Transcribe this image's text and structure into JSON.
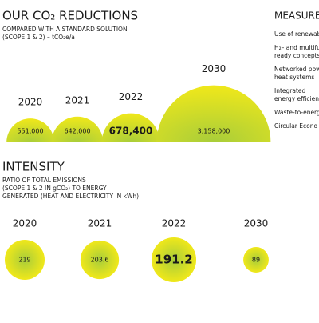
{
  "chart_data": [
    {
      "type": "semicircle-bubble",
      "title": "OUR CO₂ REDUCTIONS",
      "subtitle": [
        "COMPARED WITH A STANDARD SOLUTION",
        "(SCOPE 1 & 2) – tCO₂e/a"
      ],
      "categories": [
        "2020",
        "2021",
        "2022",
        "2030"
      ],
      "values": [
        551000,
        642000,
        678400,
        3158000
      ],
      "value_labels": [
        "551,000",
        "642,000",
        "678,400",
        "3,158,000"
      ],
      "bold": [
        false,
        false,
        true,
        false
      ],
      "color": [
        "#a8cd3a",
        "#f0e81a"
      ]
    },
    {
      "type": "bubble",
      "title": "INTENSITY",
      "subtitle": [
        "RATIO OF TOTAL EMISSIONS",
        "(SCOPE 1 & 2 IN gCO₂) TO ENERGY",
        "GENERATED (HEAT AND ELECTRICITY IN kWh)"
      ],
      "categories": [
        "2020",
        "2021",
        "2022",
        "2030"
      ],
      "values": [
        219,
        203.6,
        191.2,
        89
      ],
      "bold": [
        false,
        false,
        true,
        false
      ],
      "color": [
        "#a8cd3a",
        "#f0e81a"
      ]
    }
  ],
  "measures": {
    "title": "MEASURES",
    "items": [
      [
        "Use of renewabl"
      ],
      [
        "H₂– and multifu",
        "ready concepts"
      ],
      [
        "Networked pow",
        "heat systems"
      ],
      [
        "Integrated",
        "energy efficien"
      ],
      [
        "Waste-to-energ"
      ],
      [
        "Circular Econo"
      ]
    ]
  }
}
